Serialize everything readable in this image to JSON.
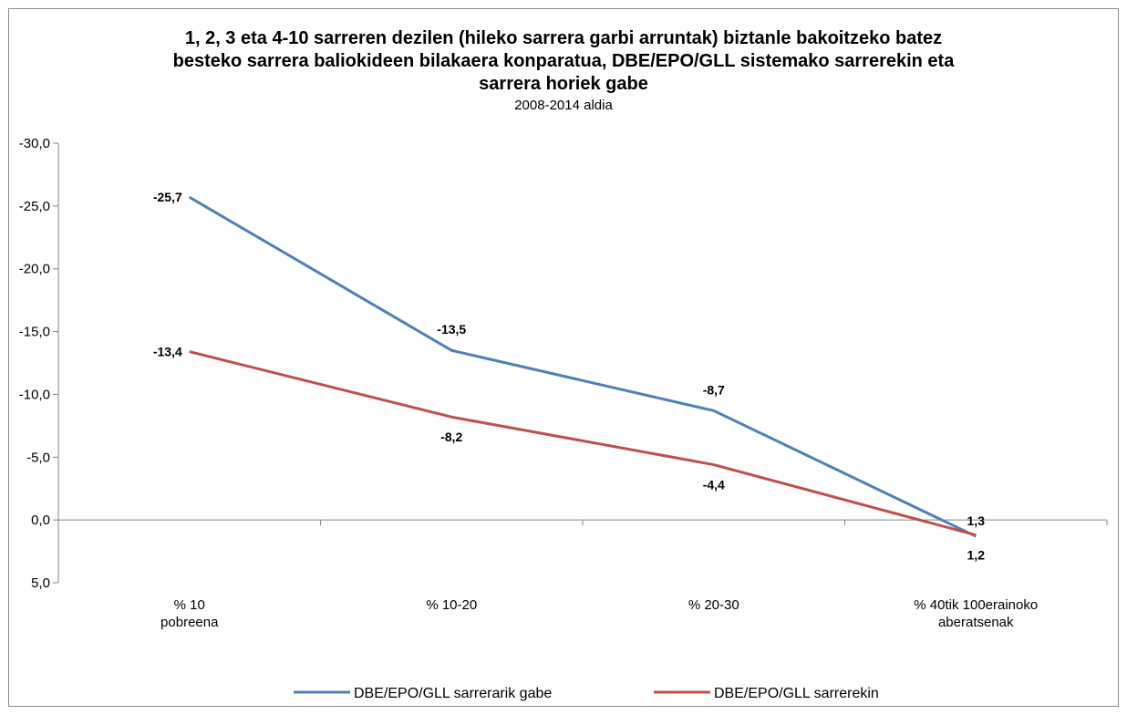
{
  "chart_data": {
    "type": "line",
    "title_lines": [
      "1, 2, 3 eta 4-10 sarreren dezilen (hileko sarrera garbi arruntak) biztanle bakoitzeko batez",
      "besteko sarrera baliokideen bilakaera konparatua, DBE/EPO/GLL sistemako sarrerekin eta",
      "sarrera horiek gabe"
    ],
    "subtitle": "2008-2014 aldia",
    "categories": [
      [
        "% 10",
        "pobreena"
      ],
      [
        "% 10-20"
      ],
      [
        "% 20-30"
      ],
      [
        "% 40tik 100erainoko",
        "aberatsenak"
      ]
    ],
    "ylim": [
      -30,
      5
    ],
    "y_axis_reversed": true,
    "y_ticks": [
      -30,
      -25,
      -20,
      -15,
      -10,
      -5,
      0,
      5
    ],
    "y_tick_labels": [
      "-30,0",
      "-25,0",
      "-20,0",
      "-15,0",
      "-10,0",
      "-5,0",
      "0,0",
      "5,0"
    ],
    "grid": false,
    "legend_position": "bottom",
    "series": [
      {
        "name": "DBE/EPO/GLL sarrerarik gabe",
        "color": "#4f81bd",
        "values": [
          -25.7,
          -13.5,
          -8.7,
          1.3
        ],
        "labels": [
          "-25,7",
          "-13,5",
          "-8,7",
          "1,3"
        ]
      },
      {
        "name": "DBE/EPO/GLL sarrerekin",
        "color": "#c0504d",
        "values": [
          -13.4,
          -8.2,
          -4.4,
          1.2
        ],
        "labels": [
          "-13,4",
          "-8,2",
          "-4,4",
          "1,2"
        ]
      }
    ]
  }
}
